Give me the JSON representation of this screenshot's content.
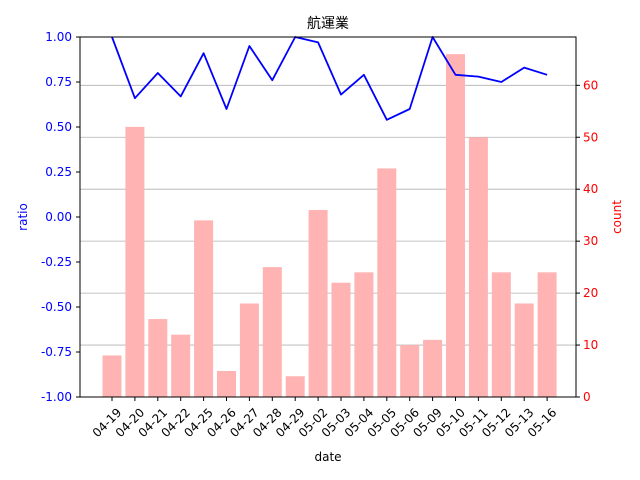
{
  "chart_data": {
    "type": "bar+line",
    "title": "航運業",
    "xlabel": "date",
    "ylabel_left": "ratio",
    "ylabel_right": "count",
    "categories": [
      "04-19",
      "04-20",
      "04-21",
      "04-22",
      "04-25",
      "04-26",
      "04-27",
      "04-28",
      "04-29",
      "05-02",
      "05-03",
      "05-04",
      "05-05",
      "05-06",
      "05-09",
      "05-10",
      "05-11",
      "05-12",
      "05-13",
      "05-16"
    ],
    "ratio": [
      1.0,
      0.66,
      0.8,
      0.67,
      0.91,
      0.6,
      0.95,
      0.76,
      1.0,
      0.97,
      0.68,
      0.79,
      0.54,
      0.6,
      1.0,
      0.79,
      0.78,
      0.75,
      0.83,
      0.79
    ],
    "count": [
      8,
      52,
      15,
      12,
      34,
      5,
      18,
      25,
      4,
      36,
      22,
      24,
      44,
      10,
      11,
      66,
      50,
      24,
      18,
      24
    ],
    "ylim_left": [
      -1.0,
      1.0
    ],
    "ylim_right": [
      0,
      69.3
    ],
    "yticks_left": [
      "-1.00",
      "-0.75",
      "-0.50",
      "-0.25",
      "0.00",
      "0.25",
      "0.50",
      "0.75",
      "1.00"
    ],
    "yticks_right": [
      "0",
      "10",
      "20",
      "30",
      "40",
      "50",
      "60"
    ],
    "grid": "right-axis horizontal",
    "colors": {
      "line": "#0000ff",
      "bar": "#ffb3b3",
      "left_axis": "#0000ff",
      "right_axis": "#ff0000",
      "grid": "#b0b0b0"
    }
  }
}
